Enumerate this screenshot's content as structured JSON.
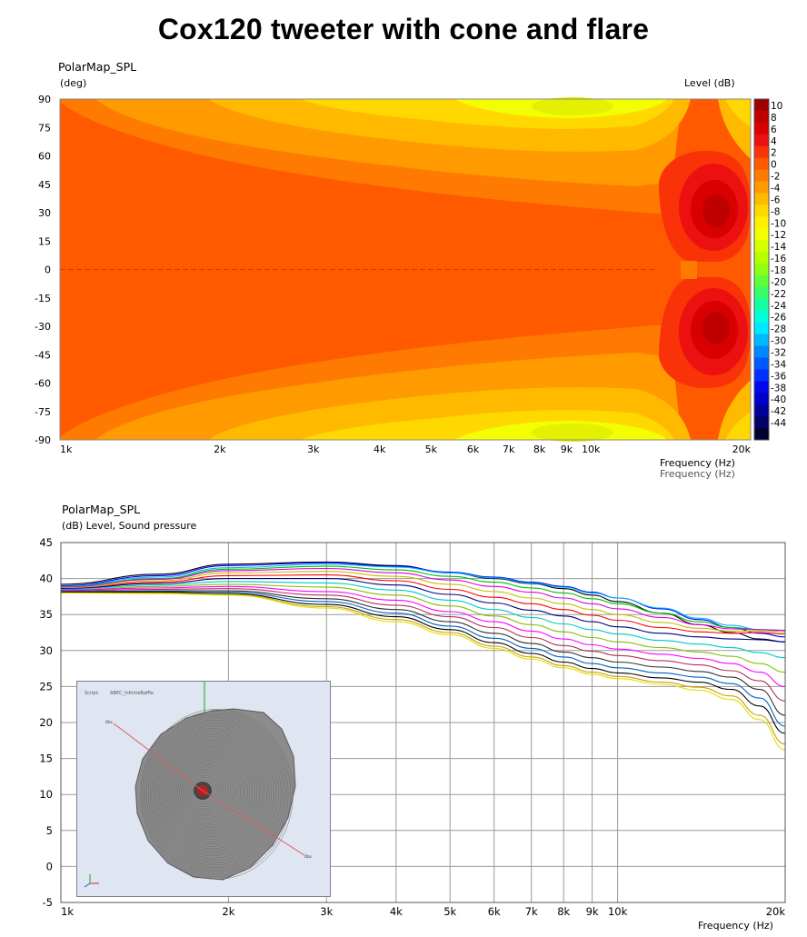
{
  "title": "Cox120 tweeter with cone and flare",
  "chart_data": [
    {
      "type": "heatmap",
      "title": "PolarMap_SPL",
      "ylabel": "(deg)",
      "xlabel": "Frequency  (Hz)",
      "xlabel_shadow": "Frequency  (Hz)",
      "colorbar_label": "Level  (dB)",
      "xscale": "log",
      "xlim": [
        1000,
        20000
      ],
      "ylim": [
        -90,
        90
      ],
      "x_ticks": [
        {
          "v": 1000,
          "label": "1k"
        },
        {
          "v": 2000,
          "label": "2k"
        },
        {
          "v": 3000,
          "label": "3k"
        },
        {
          "v": 4000,
          "label": "4k"
        },
        {
          "v": 5000,
          "label": "5k"
        },
        {
          "v": 6000,
          "label": "6k"
        },
        {
          "v": 7000,
          "label": "7k"
        },
        {
          "v": 8000,
          "label": "8k"
        },
        {
          "v": 9000,
          "label": "9k"
        },
        {
          "v": 10000,
          "label": "10k"
        },
        {
          "v": 20000,
          "label": "20k"
        }
      ],
      "y_ticks": [
        90,
        75,
        60,
        45,
        30,
        15,
        0,
        -15,
        -30,
        -45,
        -60,
        -75,
        -90
      ],
      "colorbar_ticks": [
        10,
        8,
        6,
        4,
        2,
        0,
        -2,
        -4,
        -6,
        -8,
        -10,
        -12,
        -14,
        -16,
        -18,
        -20,
        -22,
        -24,
        -26,
        -28,
        -30,
        -32,
        -34,
        -36,
        -38,
        -40,
        -42,
        -44
      ],
      "colorbar_colors": [
        "#9e0000",
        "#bf0000",
        "#d80000",
        "#ec1010",
        "#f93208",
        "#ff5a00",
        "#ff7a00",
        "#ff9a00",
        "#ffba00",
        "#ffd800",
        "#ffef00",
        "#f3ff00",
        "#d6ff00",
        "#b4ff00",
        "#8cff14",
        "#5cff3c",
        "#36ff6a",
        "#14ffa2",
        "#00ffd8",
        "#00e8ff",
        "#00b8ff",
        "#0088ff",
        "#0058ff",
        "#0030ff",
        "#0008f0",
        "#0000c8",
        "#00009a",
        "#000066",
        "#000030"
      ],
      "level_regions": [
        {
          "level_db": 0,
          "color": "#ff5a00",
          "description": "base level, all angles at low frequency"
        },
        {
          "level_db": -4,
          "color": "#ff9a00",
          "region": "off-axis above ~1.2k"
        },
        {
          "level_db": -6,
          "color": "#ffba00",
          "region": "off-axis above ~2k"
        },
        {
          "level_db": -8,
          "color": "#ffd800",
          "region": "off-axis 5k-12k"
        },
        {
          "level_db": -10,
          "color": "#f3ff00",
          "region": "near +/-85deg around 9k"
        },
        {
          "level_db": 4,
          "color": "#ec1010",
          "region": "+/-30deg lobes 13k-20k"
        },
        {
          "level_db": 8,
          "color": "#bf0000",
          "region": "lobe cores ~17k at +/-32deg"
        }
      ]
    },
    {
      "type": "line",
      "title": "PolarMap_SPL",
      "ylabel": "(dB)  Level, Sound pressure",
      "xlabel": "Frequency  (Hz)",
      "xscale": "log",
      "xlim": [
        1000,
        20000
      ],
      "ylim": [
        -5,
        45
      ],
      "y_ticks": [
        45,
        40,
        35,
        30,
        25,
        20,
        15,
        10,
        5,
        0,
        -5
      ],
      "x_ticks": [
        {
          "v": 1000,
          "label": "1k"
        },
        {
          "v": 2000,
          "label": "2k"
        },
        {
          "v": 3000,
          "label": "3k"
        },
        {
          "v": 4000,
          "label": "4k"
        },
        {
          "v": 5000,
          "label": "5k"
        },
        {
          "v": 6000,
          "label": "6k"
        },
        {
          "v": 7000,
          "label": "7k"
        },
        {
          "v": 8000,
          "label": "8k"
        },
        {
          "v": 9000,
          "label": "9k"
        },
        {
          "v": 10000,
          "label": "10k"
        },
        {
          "v": 20000,
          "label": "20k"
        }
      ],
      "grid": true,
      "x": [
        1000,
        1500,
        2000,
        3000,
        4000,
        5000,
        6000,
        7000,
        8000,
        9000,
        10000,
        12000,
        14000,
        16000,
        18000,
        20000
      ],
      "series": [
        {
          "color": "#000000",
          "values": [
            39.2,
            40.6,
            42.0,
            42.3,
            41.8,
            40.8,
            40.0,
            39.3,
            38.6,
            37.7,
            36.8,
            35.2,
            33.6,
            32.5,
            31.6,
            31.2
          ]
        },
        {
          "color": "#0000ff",
          "values": [
            39.0,
            40.4,
            41.8,
            42.2,
            41.7,
            40.9,
            40.2,
            39.5,
            38.9,
            38.1,
            37.3,
            35.8,
            34.3,
            33.2,
            32.4,
            31.9
          ]
        },
        {
          "color": "#00b4ff",
          "values": [
            38.9,
            40.2,
            41.5,
            42.0,
            41.6,
            40.8,
            40.1,
            39.4,
            38.8,
            38.0,
            37.3,
            35.9,
            34.5,
            33.5,
            32.9,
            32.6
          ]
        },
        {
          "color": "#00c000",
          "values": [
            38.8,
            40.0,
            41.3,
            41.7,
            41.2,
            40.3,
            39.5,
            38.7,
            38.0,
            37.2,
            36.5,
            35.2,
            34.0,
            33.2,
            32.9,
            32.8
          ]
        },
        {
          "color": "#e000e0",
          "values": [
            38.8,
            39.9,
            41.1,
            41.4,
            40.8,
            39.8,
            38.9,
            38.1,
            37.3,
            36.5,
            35.8,
            34.6,
            33.6,
            33.0,
            32.9,
            32.8
          ]
        },
        {
          "color": "#c0c000",
          "values": [
            38.7,
            39.7,
            40.8,
            41.0,
            40.3,
            39.2,
            38.2,
            37.3,
            36.5,
            35.7,
            35.0,
            33.9,
            33.1,
            32.7,
            32.7,
            32.6
          ]
        },
        {
          "color": "#ff0000",
          "values": [
            38.6,
            39.5,
            40.4,
            40.5,
            39.7,
            38.5,
            37.4,
            36.5,
            35.7,
            34.9,
            34.2,
            33.2,
            32.6,
            32.4,
            32.5,
            32.3
          ]
        },
        {
          "color": "#000080",
          "values": [
            38.6,
            39.3,
            40.0,
            40.0,
            39.1,
            37.8,
            36.6,
            35.6,
            34.8,
            34.0,
            33.3,
            32.4,
            31.9,
            31.6,
            31.5,
            31.2
          ]
        },
        {
          "color": "#00c8c8",
          "values": [
            38.5,
            39.1,
            39.6,
            39.4,
            38.4,
            37.0,
            35.7,
            34.6,
            33.7,
            32.9,
            32.3,
            31.4,
            30.9,
            30.4,
            29.7,
            29.0
          ]
        },
        {
          "color": "#80c000",
          "values": [
            38.4,
            38.9,
            39.2,
            38.8,
            37.7,
            36.2,
            34.8,
            33.6,
            32.6,
            31.8,
            31.2,
            30.4,
            29.8,
            29.2,
            28.2,
            27.0
          ]
        },
        {
          "color": "#ff00ff",
          "values": [
            38.4,
            38.7,
            38.9,
            38.2,
            37.0,
            35.4,
            34.0,
            32.7,
            31.6,
            30.8,
            30.2,
            29.5,
            28.9,
            28.2,
            27.0,
            25.0
          ]
        },
        {
          "color": "#b03060",
          "values": [
            38.3,
            38.5,
            38.6,
            37.7,
            36.3,
            34.7,
            33.2,
            31.8,
            30.7,
            29.9,
            29.3,
            28.6,
            28.0,
            27.2,
            25.8,
            23.0
          ]
        },
        {
          "color": "#303030",
          "values": [
            38.2,
            38.3,
            38.3,
            37.2,
            35.7,
            34.0,
            32.4,
            31.0,
            29.8,
            29.0,
            28.4,
            27.7,
            27.1,
            26.3,
            24.6,
            21.0
          ]
        },
        {
          "color": "#0060c0",
          "values": [
            38.2,
            38.2,
            38.1,
            36.8,
            35.2,
            33.4,
            31.7,
            30.3,
            29.1,
            28.2,
            27.6,
            26.9,
            26.3,
            25.4,
            23.4,
            19.5
          ]
        },
        {
          "color": "#000000",
          "values": [
            38.1,
            38.1,
            37.9,
            36.4,
            34.7,
            32.9,
            31.1,
            29.6,
            28.4,
            27.5,
            26.9,
            26.2,
            25.6,
            24.6,
            22.3,
            18.5
          ]
        },
        {
          "color": "#c8a000",
          "values": [
            38.0,
            38.0,
            37.8,
            36.1,
            34.3,
            32.5,
            30.6,
            29.1,
            27.9,
            27.0,
            26.4,
            25.6,
            24.9,
            23.7,
            21.0,
            17.0
          ]
        },
        {
          "color": "#e0e000",
          "values": [
            38.0,
            37.9,
            37.7,
            35.9,
            34.0,
            32.2,
            30.3,
            28.8,
            27.6,
            26.7,
            26.1,
            25.3,
            24.5,
            23.2,
            20.4,
            16.2
          ]
        }
      ]
    }
  ],
  "inset": {
    "script_label": "Script:",
    "script_value": "ABEC_InfiniteBaffle",
    "marker_a": "Obs",
    "marker_b": "Obs"
  }
}
